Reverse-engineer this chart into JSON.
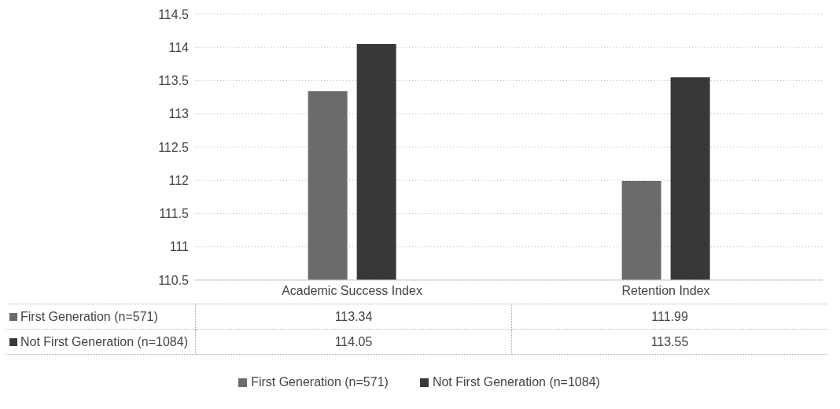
{
  "chart_data": {
    "type": "bar",
    "categories": [
      "Academic Success Index",
      "Retention Index"
    ],
    "series": [
      {
        "name": "First Generation (n=571)",
        "color": "#6b6b6b",
        "values": [
          113.34,
          111.99
        ]
      },
      {
        "name": "Not First Generation (n=1084)",
        "color": "#383838",
        "values": [
          114.05,
          113.55
        ]
      }
    ],
    "ylim": [
      110.5,
      114.5
    ],
    "yticks": [
      110.5,
      111,
      111.5,
      112,
      112.5,
      113,
      113.5,
      114,
      114.5
    ],
    "grid": "y",
    "legend": "bottom",
    "data_labels": true
  }
}
